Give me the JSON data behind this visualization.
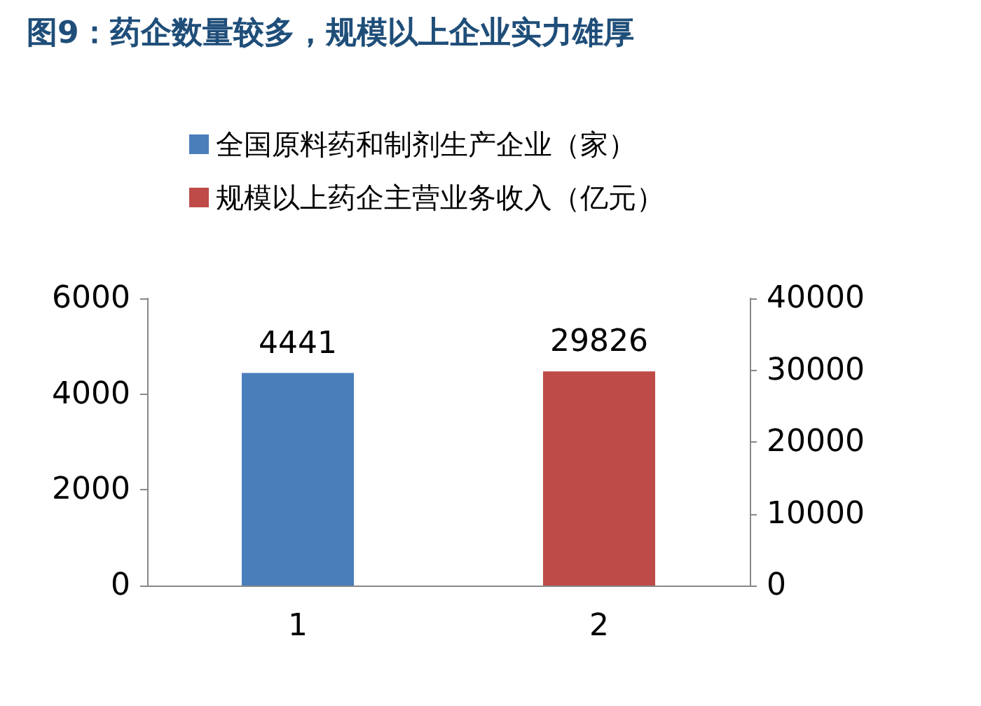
{
  "chart_data": {
    "type": "bar",
    "title": "图9：药企数量较多，规模以上企业实力雄厚",
    "categories": [
      "1",
      "2"
    ],
    "series": [
      {
        "name": "全国原料药和制剂生产企业（家）",
        "color": "#4a7ebb",
        "values": [
          4441,
          null
        ]
      },
      {
        "name": "规模以上药企主营业务收入（亿元）",
        "color": "#be4b48",
        "values": [
          null,
          29826
        ],
        "axis": "y2"
      }
    ],
    "ylim": [
      0,
      6000
    ],
    "yticks": [
      0,
      2000,
      4000,
      6000
    ],
    "y2lim": [
      0,
      40000
    ],
    "y2ticks": [
      0,
      10000,
      20000,
      30000,
      40000
    ],
    "data_labels": true,
    "legend": "top"
  }
}
